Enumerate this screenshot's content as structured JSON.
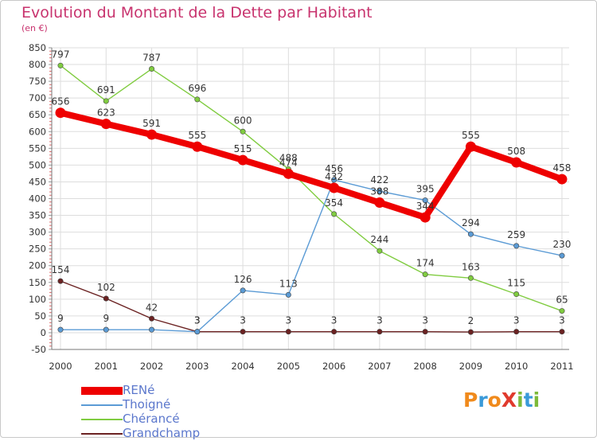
{
  "title": "Evolution du Montant de la Dette par Habitant",
  "unit": "(en €)",
  "logo": {
    "text": "ProXiti",
    "letters": [
      {
        "ch": "P",
        "color": "#f08a1c"
      },
      {
        "ch": "r",
        "color": "#3a9ad9"
      },
      {
        "ch": "o",
        "color": "#f08a1c"
      },
      {
        "ch": "X",
        "color": "#e03a2d"
      },
      {
        "ch": "i",
        "color": "#7cba3a"
      },
      {
        "ch": "t",
        "color": "#3a9ad9"
      },
      {
        "ch": "i",
        "color": "#7cba3a"
      }
    ]
  },
  "chart_data": {
    "type": "line",
    "title": "Evolution du Montant de la Dette par Habitant",
    "ylabel": "(en €)",
    "categories": [
      "2000",
      "2001",
      "2002",
      "2003",
      "2004",
      "2005",
      "2006",
      "2007",
      "2008",
      "2009",
      "2010",
      "2011"
    ],
    "ylim": [
      -50,
      850
    ],
    "yticks": [
      "-50",
      "0",
      "50",
      "100",
      "150",
      "200",
      "250",
      "300",
      "350",
      "400",
      "450",
      "500",
      "550",
      "600",
      "650",
      "700",
      "750",
      "800",
      "850"
    ],
    "grid": true,
    "legend_position": "bottom-left",
    "series": [
      {
        "name": "RENé",
        "color": "#ee0000",
        "values": [
          656,
          623,
          591,
          555,
          515,
          474,
          432,
          388,
          344,
          555,
          508,
          458
        ],
        "labels": [
          "656",
          "623",
          "591",
          "555",
          "515",
          "474",
          "432",
          "388",
          "344",
          "555",
          "508",
          "458"
        ]
      },
      {
        "name": "Thoigné",
        "color": "#5b9bd5",
        "values": [
          9,
          9,
          9,
          3,
          126,
          113,
          456,
          422,
          395,
          294,
          259,
          230
        ],
        "labels": [
          "9",
          "9",
          "",
          "3",
          "126",
          "113",
          "456",
          "422",
          "395",
          "294",
          "259",
          "230"
        ]
      },
      {
        "name": "Chérancé",
        "color": "#80cc40",
        "values": [
          797,
          691,
          787,
          696,
          600,
          488,
          354,
          244,
          174,
          163,
          115,
          65
        ],
        "labels": [
          "797",
          "691",
          "787",
          "696",
          "600",
          "488",
          "354",
          "244",
          "174",
          "163",
          "115",
          "65"
        ]
      },
      {
        "name": "Grandchamp",
        "color": "#6b2222",
        "values": [
          154,
          102,
          42,
          3,
          3,
          3,
          3,
          3,
          3,
          2,
          3,
          3
        ],
        "labels": [
          "154",
          "102",
          "42",
          "3",
          "3",
          "3",
          "3",
          "3",
          "3",
          "2",
          "3",
          "3"
        ]
      }
    ]
  }
}
